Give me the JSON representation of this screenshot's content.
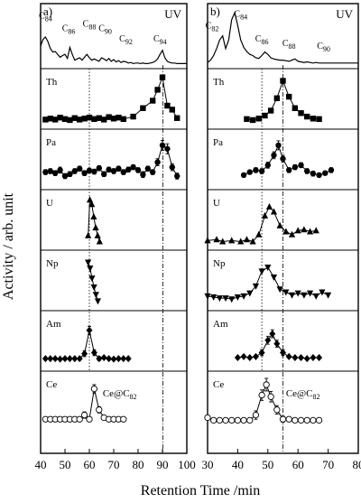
{
  "ylabel": "Activity / arb. unit",
  "xlabel": "Retention Time /min",
  "chart_data": [
    {
      "type": "line",
      "panel_label": "a)",
      "xlim": [
        40,
        100
      ],
      "xticks": [
        40,
        50,
        60,
        70,
        80,
        90,
        100
      ],
      "guide_short": 60.0,
      "guide_long": 90.2,
      "ce_annotation": "Ce@C",
      "ce_annotation_sub": "82",
      "uv": {
        "name": "UV",
        "x": [
          40,
          41,
          42,
          43,
          44,
          45,
          46,
          47,
          48,
          49,
          50,
          51,
          52,
          53,
          54,
          55,
          56,
          57,
          58,
          59,
          60,
          61,
          62,
          63,
          64,
          65,
          66,
          67,
          68,
          69,
          70,
          71,
          72,
          73,
          74,
          75,
          76,
          77,
          78,
          79,
          80,
          81,
          82,
          83,
          84,
          85,
          86,
          87,
          88,
          89,
          90,
          91,
          92,
          93,
          94,
          95,
          96,
          97,
          98,
          99,
          100
        ],
        "y": [
          0.35,
          0.46,
          0.5,
          0.42,
          0.3,
          0.24,
          0.25,
          0.2,
          0.15,
          0.18,
          0.2,
          0.13,
          0.32,
          0.2,
          0.1,
          0.12,
          0.14,
          0.1,
          0.15,
          0.2,
          0.14,
          0.1,
          0.12,
          0.1,
          0.08,
          0.14,
          0.12,
          0.09,
          0.13,
          0.08,
          0.11,
          0.07,
          0.09,
          0.06,
          0.08,
          0.07,
          0.05,
          0.06,
          0.04,
          0.05,
          0.05,
          0.04,
          0.05,
          0.04,
          0.04,
          0.05,
          0.06,
          0.08,
          0.12,
          0.2,
          0.27,
          0.14,
          0.08,
          0.06,
          0.05,
          0.05,
          0.04,
          0.04,
          0.04,
          0.04,
          0.04
        ],
        "peaks": [
          {
            "base": "C",
            "sub": "84",
            "x": 42.0,
            "y": 0.82
          },
          {
            "base": "C",
            "sub": "86",
            "x": 51.5,
            "y": 0.6
          },
          {
            "base": "C",
            "sub": "88",
            "x": 60.0,
            "y": 0.68
          },
          {
            "base": "C",
            "sub": "90",
            "x": 66.5,
            "y": 0.6
          },
          {
            "base": "C",
            "sub": "92",
            "x": 75.0,
            "y": 0.42
          },
          {
            "base": "C",
            "sub": "94",
            "x": 89.0,
            "y": 0.42
          }
        ]
      },
      "series": [
        {
          "name": "Th",
          "marker": "square",
          "x": [
            42,
            44,
            46,
            48,
            50,
            52,
            54,
            56,
            58,
            60,
            62,
            64,
            66,
            68,
            70,
            72,
            74,
            78,
            82,
            86,
            88,
            90,
            92,
            94,
            96
          ],
          "y": [
            0.12,
            0.14,
            0.12,
            0.16,
            0.13,
            0.11,
            0.15,
            0.12,
            0.14,
            0.16,
            0.13,
            0.15,
            0.12,
            0.17,
            0.14,
            0.16,
            0.13,
            0.18,
            0.35,
            0.5,
            0.72,
            0.97,
            0.4,
            0.32,
            0.15
          ]
        },
        {
          "name": "Pa",
          "marker": "circle",
          "x": [
            42,
            44,
            46,
            48,
            50,
            52,
            54,
            56,
            58,
            60,
            62,
            64,
            66,
            68,
            70,
            72,
            74,
            76,
            78,
            80,
            82,
            84,
            86,
            88,
            90,
            92,
            94,
            96
          ],
          "y": [
            0.28,
            0.3,
            0.26,
            0.32,
            0.2,
            0.24,
            0.3,
            0.35,
            0.26,
            0.31,
            0.29,
            0.36,
            0.24,
            0.33,
            0.3,
            0.35,
            0.28,
            0.33,
            0.38,
            0.32,
            0.23,
            0.35,
            0.28,
            0.48,
            0.82,
            0.75,
            0.38,
            0.2
          ],
          "err": [
            0.05,
            0.05,
            0.05,
            0.06,
            0.05,
            0.05,
            0.05,
            0.05,
            0.05,
            0.05,
            0.05,
            0.05,
            0.05,
            0.05,
            0.05,
            0.05,
            0.05,
            0.05,
            0.05,
            0.05,
            0.06,
            0.05,
            0.05,
            0.07,
            0.1,
            0.1,
            0.07,
            0.06
          ]
        },
        {
          "name": "U",
          "marker": "triangle-up",
          "x": [
            59.5,
            60.2,
            61,
            61.8,
            62.6,
            63.4,
            64.2
          ],
          "y": [
            0.22,
            0.94,
            0.85,
            0.6,
            0.38,
            0.22,
            0.1
          ]
        },
        {
          "name": "Np",
          "marker": "triangle-down",
          "x": [
            59.5,
            60.3,
            61.1,
            61.9,
            62.7,
            63.5
          ],
          "y": [
            0.9,
            0.78,
            0.58,
            0.4,
            0.25,
            0.12
          ]
        },
        {
          "name": "Am",
          "marker": "diamond",
          "x": [
            42,
            44,
            46,
            48,
            50,
            52,
            54,
            56,
            58,
            60,
            62,
            64,
            66,
            68,
            70,
            72,
            74,
            76
          ],
          "y": [
            0.18,
            0.18,
            0.18,
            0.17,
            0.18,
            0.18,
            0.18,
            0.18,
            0.28,
            0.75,
            0.3,
            0.18,
            0.2,
            0.18,
            0.17,
            0.18,
            0.18,
            0.18
          ],
          "err": [
            0,
            0,
            0,
            0,
            0,
            0,
            0,
            0,
            0.06,
            0.08,
            0.06,
            0.04,
            0,
            0,
            0,
            0,
            0,
            0
          ]
        },
        {
          "name": "Ce",
          "marker": "open-circle",
          "x": [
            42,
            44,
            46,
            48,
            50,
            52,
            54,
            56,
            58,
            60,
            62,
            64,
            66,
            68,
            70,
            72,
            74
          ],
          "y": [
            0.22,
            0.22,
            0.22,
            0.22,
            0.22,
            0.22,
            0.22,
            0.22,
            0.3,
            0.22,
            0.8,
            0.4,
            0.25,
            0.22,
            0.22,
            0.22,
            0.22
          ],
          "err": [
            0,
            0,
            0,
            0,
            0,
            0,
            0,
            0,
            0.06,
            0,
            0.08,
            0.06,
            0,
            0,
            0,
            0,
            0
          ]
        }
      ]
    },
    {
      "type": "line",
      "panel_label": "b)",
      "xlim": [
        30,
        80
      ],
      "xticks": [
        30,
        40,
        50,
        60,
        70,
        80
      ],
      "guide_short": 48.0,
      "guide_long": 55.0,
      "ce_annotation": "Ce@C",
      "ce_annotation_sub": "82",
      "uv": {
        "name": "UV",
        "x": [
          30,
          31,
          32,
          33,
          34,
          35,
          36,
          37,
          38,
          39,
          40,
          41,
          42,
          43,
          44,
          45,
          46,
          47,
          48,
          49,
          50,
          51,
          52,
          53,
          54,
          55,
          56,
          57,
          58,
          59,
          60,
          61,
          62,
          63,
          64,
          65,
          66,
          67,
          68,
          69,
          70,
          71,
          72,
          73,
          74,
          75,
          76,
          77,
          78,
          79,
          80
        ],
        "y": [
          0.06,
          0.1,
          0.18,
          0.3,
          0.45,
          0.52,
          0.3,
          0.45,
          0.8,
          0.92,
          0.7,
          0.45,
          0.32,
          0.25,
          0.2,
          0.18,
          0.14,
          0.13,
          0.18,
          0.24,
          0.2,
          0.14,
          0.12,
          0.11,
          0.1,
          0.1,
          0.09,
          0.08,
          0.1,
          0.12,
          0.08,
          0.07,
          0.06,
          0.07,
          0.06,
          0.05,
          0.06,
          0.05,
          0.05,
          0.05,
          0.05,
          0.05,
          0.05,
          0.05,
          0.05,
          0.05,
          0.05,
          0.05,
          0.05,
          0.05,
          0.05
        ],
        "peaks": [
          {
            "base": "C",
            "sub": "82",
            "x": 31.5,
            "y": 0.65
          },
          {
            "base": "C",
            "sub": "84",
            "x": 41.0,
            "y": 0.85
          },
          {
            "base": "C",
            "sub": "86",
            "x": 48.0,
            "y": 0.42
          },
          {
            "base": "C",
            "sub": "88",
            "x": 57.0,
            "y": 0.34
          },
          {
            "base": "C",
            "sub": "90",
            "x": 68.5,
            "y": 0.3
          }
        ]
      },
      "series": [
        {
          "name": "Th",
          "marker": "square",
          "x": [
            43,
            45,
            47,
            49,
            51,
            53,
            55,
            57,
            59,
            61,
            63,
            65,
            67
          ],
          "y": [
            0.13,
            0.11,
            0.14,
            0.2,
            0.3,
            0.55,
            0.9,
            0.58,
            0.35,
            0.25,
            0.18,
            0.14,
            0.13
          ]
        },
        {
          "name": "Pa",
          "marker": "circle",
          "x": [
            42,
            44,
            46,
            48,
            50,
            52,
            53.5,
            55,
            57,
            59,
            61,
            63,
            65,
            67,
            69,
            71
          ],
          "y": [
            0.22,
            0.28,
            0.32,
            0.3,
            0.42,
            0.62,
            0.82,
            0.55,
            0.32,
            0.38,
            0.42,
            0.3,
            0.25,
            0.22,
            0.26,
            0.32
          ],
          "err": [
            0.04,
            0.04,
            0.05,
            0.05,
            0.06,
            0.07,
            0.09,
            0.07,
            0.05,
            0.05,
            0.05,
            0.05,
            0.05,
            0.04,
            0.04,
            0.05
          ]
        },
        {
          "name": "U",
          "marker": "triangle-up",
          "x": [
            30,
            33,
            35,
            38,
            41,
            43,
            45,
            47,
            49,
            50.5,
            52,
            54,
            56,
            58,
            60,
            62,
            64,
            66
          ],
          "y": [
            0.12,
            0.14,
            0.1,
            0.12,
            0.1,
            0.14,
            0.1,
            0.24,
            0.62,
            0.8,
            0.7,
            0.42,
            0.3,
            0.24,
            0.32,
            0.34,
            0.3,
            0.32
          ]
        },
        {
          "name": "Np",
          "marker": "triangle-down",
          "x": [
            30,
            32,
            34,
            36,
            38,
            40,
            42,
            44,
            46,
            48,
            50,
            52,
            54,
            56,
            58,
            60,
            62,
            64,
            66,
            68,
            70
          ],
          "y": [
            0.22,
            0.2,
            0.18,
            0.18,
            0.16,
            0.2,
            0.22,
            0.28,
            0.42,
            0.72,
            0.8,
            0.6,
            0.36,
            0.3,
            0.24,
            0.28,
            0.24,
            0.28,
            0.22,
            0.3,
            0.24
          ]
        },
        {
          "name": "Am",
          "marker": "diamond",
          "x": [
            40,
            42,
            44,
            46,
            48,
            50,
            51.5,
            53,
            55,
            57,
            59,
            61,
            63,
            65,
            67
          ],
          "y": [
            0.2,
            0.22,
            0.2,
            0.22,
            0.3,
            0.55,
            0.68,
            0.48,
            0.3,
            0.22,
            0.2,
            0.2,
            0.18,
            0.2,
            0.2
          ],
          "err": [
            0,
            0,
            0,
            0,
            0.06,
            0.08,
            0.08,
            0.07,
            0.06,
            0,
            0,
            0,
            0,
            0,
            0
          ]
        },
        {
          "name": "Ce",
          "marker": "open-circle",
          "x": [
            30,
            32,
            34,
            36,
            38,
            40,
            42,
            44,
            46,
            48,
            49.5,
            51,
            53,
            55,
            57,
            59,
            61,
            63,
            65,
            67
          ],
          "y": [
            0.25,
            0.2,
            0.2,
            0.2,
            0.2,
            0.2,
            0.2,
            0.2,
            0.3,
            0.68,
            0.88,
            0.65,
            0.4,
            0.22,
            0.22,
            0.2,
            0.2,
            0.2,
            0.2,
            0.2
          ],
          "err": [
            0,
            0,
            0,
            0,
            0,
            0,
            0,
            0,
            0.08,
            0.1,
            0.12,
            0.1,
            0.08,
            0.06,
            0,
            0,
            0,
            0,
            0,
            0
          ]
        }
      ]
    }
  ]
}
